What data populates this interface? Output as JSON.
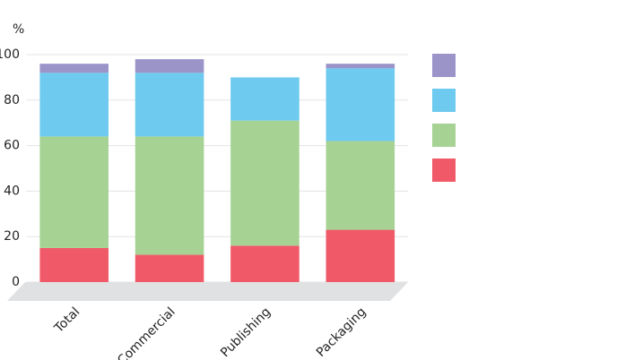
{
  "chart_data": {
    "type": "stacked_bar",
    "y_label": "%",
    "categories": [
      "Total",
      "Commercial",
      "Publishing",
      "Packaging"
    ],
    "series": [
      {
        "color": "#f05a68",
        "values": [
          15,
          12,
          16,
          23
        ]
      },
      {
        "color": "#a6d394",
        "values": [
          49,
          52,
          55,
          39
        ]
      },
      {
        "color": "#6ecaef",
        "values": [
          28,
          28,
          19,
          32
        ]
      },
      {
        "color": "#9b94c9",
        "values": [
          4,
          6,
          0,
          2
        ]
      }
    ],
    "ylim": [
      0,
      100
    ],
    "yticks": [
      0,
      20,
      40,
      60,
      80,
      100
    ],
    "grid": true
  }
}
